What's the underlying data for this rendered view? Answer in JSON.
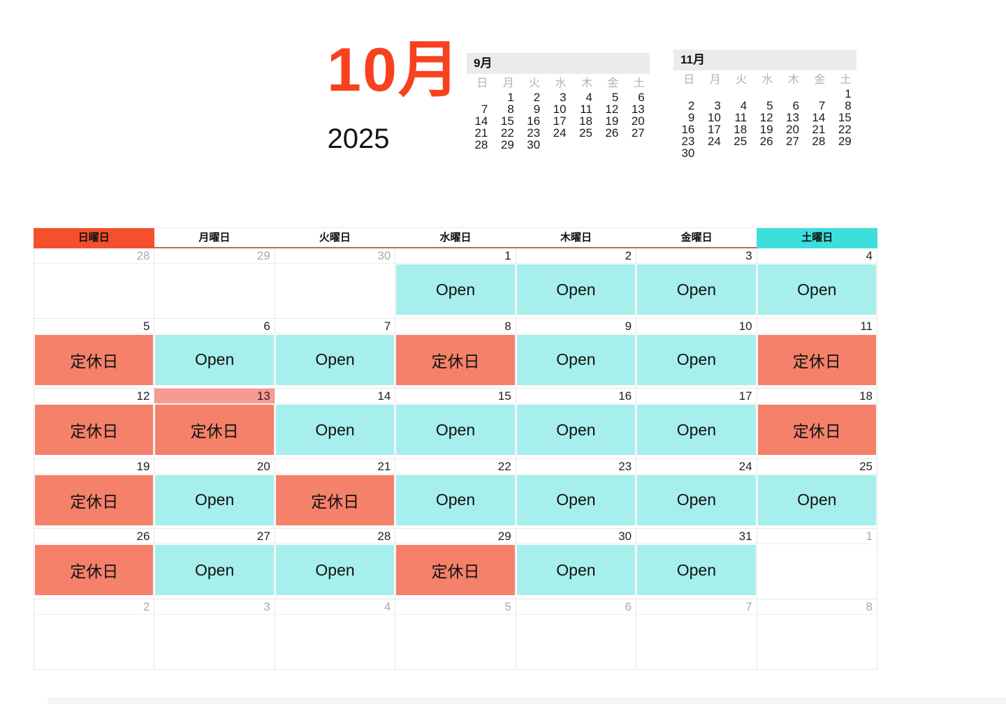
{
  "title": {
    "month": "10月",
    "year": "2025"
  },
  "mini_calendars": [
    {
      "label": "9月",
      "weekdays": [
        "日",
        "月",
        "火",
        "水",
        "木",
        "金",
        "土"
      ],
      "weeks": [
        [
          "",
          "1",
          "2",
          "3",
          "4",
          "5",
          "6"
        ],
        [
          "7",
          "8",
          "9",
          "10",
          "11",
          "12",
          "13"
        ],
        [
          "14",
          "15",
          "16",
          "17",
          "18",
          "19",
          "20"
        ],
        [
          "21",
          "22",
          "23",
          "24",
          "25",
          "26",
          "27"
        ],
        [
          "28",
          "29",
          "30",
          "",
          "",
          "",
          ""
        ]
      ]
    },
    {
      "label": "11月",
      "weekdays": [
        "日",
        "月",
        "火",
        "水",
        "木",
        "金",
        "土"
      ],
      "weeks": [
        [
          "",
          "",
          "",
          "",
          "",
          "",
          "1"
        ],
        [
          "2",
          "3",
          "4",
          "5",
          "6",
          "7",
          "8"
        ],
        [
          "9",
          "10",
          "11",
          "12",
          "13",
          "14",
          "15"
        ],
        [
          "16",
          "17",
          "18",
          "19",
          "20",
          "21",
          "22"
        ],
        [
          "23",
          "24",
          "25",
          "26",
          "27",
          "28",
          "29"
        ],
        [
          "30",
          "",
          "",
          "",
          "",
          "",
          ""
        ]
      ]
    }
  ],
  "event_labels": {
    "open": "Open",
    "closed": "定休日"
  },
  "main_calendar": {
    "day_headers": [
      {
        "label": "日曜日",
        "type": "sun"
      },
      {
        "label": "月曜日",
        "type": "weekday"
      },
      {
        "label": "火曜日",
        "type": "weekday"
      },
      {
        "label": "水曜日",
        "type": "weekday"
      },
      {
        "label": "木曜日",
        "type": "weekday"
      },
      {
        "label": "金曜日",
        "type": "weekday"
      },
      {
        "label": "土曜日",
        "type": "sat"
      }
    ],
    "weeks": [
      [
        {
          "date": "28",
          "muted": true,
          "event": null
        },
        {
          "date": "29",
          "muted": true,
          "event": null
        },
        {
          "date": "30",
          "muted": true,
          "event": null
        },
        {
          "date": "1",
          "muted": false,
          "event": "open"
        },
        {
          "date": "2",
          "muted": false,
          "event": "open"
        },
        {
          "date": "3",
          "muted": false,
          "event": "open"
        },
        {
          "date": "4",
          "muted": false,
          "event": "open"
        }
      ],
      [
        {
          "date": "5",
          "muted": false,
          "event": "closed"
        },
        {
          "date": "6",
          "muted": false,
          "event": "open"
        },
        {
          "date": "7",
          "muted": false,
          "event": "open"
        },
        {
          "date": "8",
          "muted": false,
          "event": "closed"
        },
        {
          "date": "9",
          "muted": false,
          "event": "open"
        },
        {
          "date": "10",
          "muted": false,
          "event": "open"
        },
        {
          "date": "11",
          "muted": false,
          "event": "closed"
        }
      ],
      [
        {
          "date": "12",
          "muted": false,
          "event": "closed"
        },
        {
          "date": "13",
          "muted": false,
          "event": "closed",
          "holiday": true
        },
        {
          "date": "14",
          "muted": false,
          "event": "open"
        },
        {
          "date": "15",
          "muted": false,
          "event": "open"
        },
        {
          "date": "16",
          "muted": false,
          "event": "open"
        },
        {
          "date": "17",
          "muted": false,
          "event": "open"
        },
        {
          "date": "18",
          "muted": false,
          "event": "closed"
        }
      ],
      [
        {
          "date": "19",
          "muted": false,
          "event": "closed"
        },
        {
          "date": "20",
          "muted": false,
          "event": "open"
        },
        {
          "date": "21",
          "muted": false,
          "event": "closed"
        },
        {
          "date": "22",
          "muted": false,
          "event": "open"
        },
        {
          "date": "23",
          "muted": false,
          "event": "open"
        },
        {
          "date": "24",
          "muted": false,
          "event": "open"
        },
        {
          "date": "25",
          "muted": false,
          "event": "open"
        }
      ],
      [
        {
          "date": "26",
          "muted": false,
          "event": "closed"
        },
        {
          "date": "27",
          "muted": false,
          "event": "open"
        },
        {
          "date": "28",
          "muted": false,
          "event": "open"
        },
        {
          "date": "29",
          "muted": false,
          "event": "closed"
        },
        {
          "date": "30",
          "muted": false,
          "event": "open"
        },
        {
          "date": "31",
          "muted": false,
          "event": "open"
        },
        {
          "date": "1",
          "muted": true,
          "event": null
        }
      ],
      [
        {
          "date": "2",
          "muted": true,
          "event": null
        },
        {
          "date": "3",
          "muted": true,
          "event": null
        },
        {
          "date": "4",
          "muted": true,
          "event": null
        },
        {
          "date": "5",
          "muted": true,
          "event": null
        },
        {
          "date": "6",
          "muted": true,
          "event": null
        },
        {
          "date": "7",
          "muted": true,
          "event": null
        },
        {
          "date": "8",
          "muted": true,
          "event": null
        }
      ]
    ]
  },
  "colors": {
    "title_accent": "#f8411f",
    "sunday_header_bg": "#f4502b",
    "saturday_header_bg": "#3ddfdc",
    "open_bg": "#a6efec",
    "closed_bg": "#f5816a",
    "holiday_strip_bg": "#f79a90",
    "header_underline": "#b96b5c",
    "minical_header_bg": "#ebebeb"
  }
}
